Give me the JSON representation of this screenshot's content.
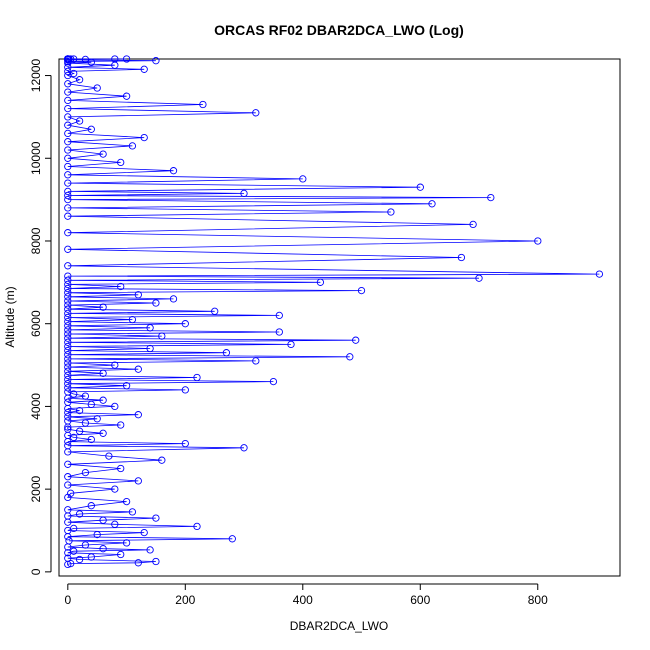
{
  "chart_data": {
    "type": "scatter",
    "title": "ORCAS RF02 DBAR2DCA_LWO (Log)",
    "xlabel": "DBAR2DCA_LWO",
    "ylabel": "Altitude (m)",
    "xlim": [
      -15,
      940
    ],
    "ylim": [
      -100,
      12400
    ],
    "xticks": [
      0,
      200,
      400,
      600,
      800
    ],
    "yticks": [
      0,
      2000,
      4000,
      6000,
      8000,
      10000,
      12000
    ],
    "grid": false,
    "legend": "none",
    "colors": {
      "series": "#0000ff",
      "axes": "#000000"
    },
    "markers": "open-circle",
    "connected": true,
    "series": [
      {
        "x": [
          0,
          5,
          120,
          150,
          20,
          0,
          40,
          90,
          0,
          10,
          140,
          60,
          0,
          30,
          100,
          2,
          280,
          0,
          50,
          130,
          0,
          10,
          220,
          80,
          0,
          60,
          150,
          0,
          20,
          110,
          0,
          40,
          100,
          0,
          5,
          80,
          0,
          120,
          0,
          30,
          90,
          0,
          160,
          70,
          0,
          300,
          0,
          200,
          0,
          40,
          10,
          0,
          60,
          20,
          0,
          0,
          90,
          30,
          0,
          50,
          0,
          120,
          0,
          20,
          0,
          80,
          40,
          0,
          60,
          0,
          30,
          10,
          0,
          200,
          0,
          100,
          0,
          350,
          0,
          220,
          0,
          60,
          0,
          120,
          0,
          80,
          0,
          320,
          0,
          480,
          0,
          270,
          0,
          140,
          0,
          380,
          0,
          490,
          0,
          160,
          0,
          360,
          0,
          140,
          0,
          200,
          0,
          110,
          0,
          360,
          0,
          250,
          0,
          60,
          0,
          150,
          0,
          180,
          0,
          120,
          0,
          500,
          0,
          90,
          0,
          430,
          0,
          700,
          0,
          905,
          0,
          670,
          0,
          800,
          0,
          690,
          0,
          550,
          0,
          620,
          0,
          720,
          0,
          300,
          0,
          600,
          0,
          400,
          0,
          180,
          0,
          90,
          0,
          60,
          0,
          110,
          0,
          130,
          0,
          40,
          0,
          20,
          0,
          320,
          0,
          230,
          0,
          100,
          0,
          50,
          0,
          20,
          0,
          10,
          0,
          130,
          0,
          80,
          0,
          40,
          0,
          150,
          0,
          30,
          0,
          80,
          0,
          100,
          0,
          10,
          0,
          5,
          0,
          2,
          0,
          1,
          0,
          0,
          0,
          0,
          0,
          0
        ],
        "y": [
          180,
          200,
          220,
          250,
          300,
          330,
          360,
          420,
          460,
          500,
          530,
          560,
          600,
          650,
          700,
          750,
          800,
          850,
          900,
          950,
          1000,
          1050,
          1100,
          1150,
          1200,
          1250,
          1300,
          1350,
          1400,
          1450,
          1500,
          1600,
          1700,
          1800,
          1900,
          2000,
          2100,
          2200,
          2300,
          2400,
          2500,
          2600,
          2700,
          2800,
          2900,
          3000,
          3050,
          3100,
          3150,
          3200,
          3250,
          3300,
          3350,
          3400,
          3450,
          3500,
          3550,
          3600,
          3650,
          3700,
          3750,
          3800,
          3850,
          3900,
          3950,
          4000,
          4050,
          4100,
          4150,
          4200,
          4250,
          4300,
          4350,
          4400,
          4450,
          4500,
          4550,
          4600,
          4650,
          4700,
          4750,
          4800,
          4850,
          4900,
          4950,
          5000,
          5050,
          5100,
          5150,
          5200,
          5250,
          5300,
          5350,
          5400,
          5450,
          5500,
          5550,
          5600,
          5650,
          5700,
          5750,
          5800,
          5850,
          5900,
          5950,
          6000,
          6050,
          6100,
          6150,
          6200,
          6250,
          6300,
          6350,
          6400,
          6450,
          6500,
          6550,
          6600,
          6650,
          6700,
          6750,
          6800,
          6850,
          6900,
          6950,
          7000,
          7050,
          7100,
          7150,
          7200,
          7400,
          7600,
          7800,
          8000,
          8200,
          8400,
          8600,
          8700,
          8800,
          8900,
          9000,
          9050,
          9100,
          9150,
          9200,
          9300,
          9400,
          9500,
          9600,
          9700,
          9800,
          9900,
          10000,
          10100,
          10200,
          10300,
          10400,
          10500,
          10600,
          10700,
          10800,
          10900,
          11000,
          11100,
          11200,
          11300,
          11400,
          11500,
          11600,
          11700,
          11800,
          11900,
          12000,
          12050,
          12100,
          12150,
          12200,
          12250,
          12300,
          12320,
          12340,
          12360,
          12380,
          12390,
          12395,
          12400,
          12400,
          12400,
          12400,
          12400,
          12400,
          12400,
          12400,
          12400,
          12400,
          12400,
          12400,
          12400,
          12400,
          12400,
          12400,
          12400
        ]
      }
    ]
  }
}
